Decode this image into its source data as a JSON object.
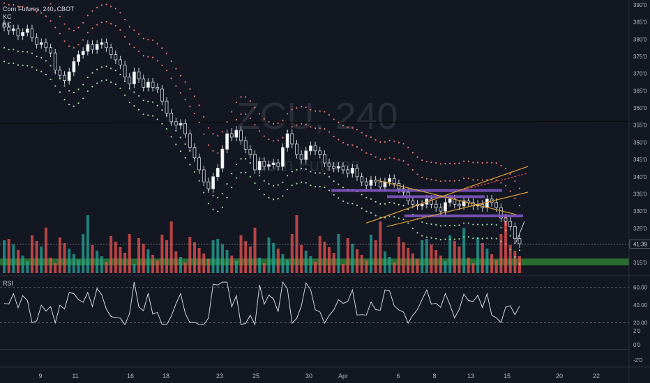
{
  "header": {
    "title": "Corn Futures, 240, CBOT",
    "indicator_1": "KC",
    "indicator_2": "KC",
    "rsi_label": "RSI"
  },
  "watermark": {
    "symbol": "ZCU, 240",
    "description": "Corn Futures"
  },
  "price_label": "41:39",
  "colors": {
    "background": "#131722",
    "up": "#ffffff",
    "down": "#ffffff",
    "keltner_outer": "#e57373",
    "keltner_inner": "#a5d6a7",
    "volume_up": "#26a69a",
    "volume_down": "#ef5350",
    "trendline": "#e0a030",
    "zone_purple": "#7e57c2",
    "zone_green": "#2e7d32"
  },
  "chart_data": {
    "type": "candlestick",
    "price_axis_labels": [
      "390'0",
      "385'0",
      "380'0",
      "375'0",
      "370'0",
      "365'0",
      "360'0",
      "355'0",
      "350'0",
      "345'0",
      "340'0",
      "335'0",
      "330'0",
      "325'0",
      "315'0"
    ],
    "rsi_axis_labels": [
      "60.00",
      "40.00",
      "20.00",
      "2'0",
      "0'0",
      "-2'0"
    ],
    "x_tick_labels": [
      "9",
      "11",
      "16",
      "18",
      "23",
      "25",
      "30",
      "Apr",
      "6",
      "8",
      "13",
      "15",
      "20",
      "22"
    ],
    "price_range": [
      312,
      391
    ],
    "rsi_range": [
      -30,
      70
    ],
    "horizontal_line_price": 355.5,
    "price_line": 320.4,
    "support_zone_green": 315.2,
    "resistance_zones_purple": [
      336.0,
      334.2,
      328.6
    ],
    "series": [
      {
        "name": "close",
        "values": [
          383.5,
          382.5,
          383.0,
          381.0,
          382.0,
          383.0,
          380.5,
          378.5,
          379.0,
          377.5,
          376.0,
          371.0,
          369.5,
          368.0,
          370.5,
          373.5,
          375.5,
          376.5,
          378.5,
          377.0,
          378.5,
          379.0,
          377.5,
          375.5,
          374.0,
          372.5,
          369.0,
          367.0,
          370.5,
          368.5,
          366.0,
          367.5,
          366.0,
          365.5,
          362.0,
          358.5,
          356.0,
          355.0,
          355.5,
          352.5,
          348.5,
          345.5,
          342.0,
          338.5,
          336.5,
          340.0,
          342.5,
          348.0,
          352.5,
          351.5,
          353.5,
          350.5,
          348.0,
          346.5,
          342.0,
          344.5,
          343.0,
          343.5,
          344.0,
          343.0,
          348.5,
          352.5,
          349.5,
          346.5,
          345.0,
          347.5,
          349.0,
          347.5,
          346.5,
          344.0,
          343.0,
          342.5,
          343.0,
          342.0,
          341.0,
          342.5,
          340.0,
          338.5,
          337.5,
          339.0,
          338.5,
          337.0,
          338.5,
          339.5,
          338.0,
          336.5,
          335.5,
          333.0,
          332.0,
          331.5,
          332.0,
          333.5,
          332.0,
          331.0,
          330.0,
          332.5,
          333.5,
          332.0,
          331.5,
          333.0,
          332.5,
          331.5,
          332.0,
          331.0,
          333.5,
          332.5,
          331.0,
          328.0,
          327.0,
          325.5,
          322.0,
          320.5
        ]
      }
    ]
  }
}
